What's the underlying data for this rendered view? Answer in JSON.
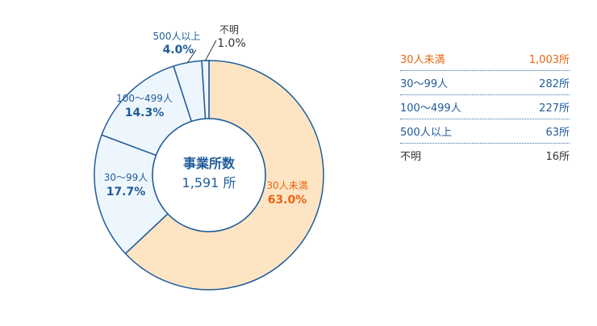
{
  "chart_data": {
    "type": "pie",
    "center_title": "事業所数",
    "center_value": "1,591 所",
    "slices": [
      {
        "label": "30人未満",
        "value": 63.0,
        "pct_label": "63.0%",
        "count": "1,003所",
        "fill": "#fde5c4",
        "text_color": "#e8650f"
      },
      {
        "label": "30〜99人",
        "value": 17.7,
        "pct_label": "17.7%",
        "count": "282所",
        "fill": "#eef6fd",
        "text_color": "#1f5c99"
      },
      {
        "label": "100〜499人",
        "value": 14.3,
        "pct_label": "14.3%",
        "count": "227所",
        "fill": "#eef6fd",
        "text_color": "#1f5c99"
      },
      {
        "label": "500人以上",
        "value": 4.0,
        "pct_label": "4.0%",
        "count": "63所",
        "fill": "#eef6fd",
        "text_color": "#1f5c99"
      },
      {
        "label": "不明",
        "value": 1.0,
        "pct_label": "1.0%",
        "count": "16所",
        "fill": "#eef6fd",
        "text_color": "#333333"
      }
    ]
  },
  "colors": {
    "border": "#1f5c99",
    "center_text": "#1f5c99",
    "legend_divider": "#3a6ea8"
  }
}
